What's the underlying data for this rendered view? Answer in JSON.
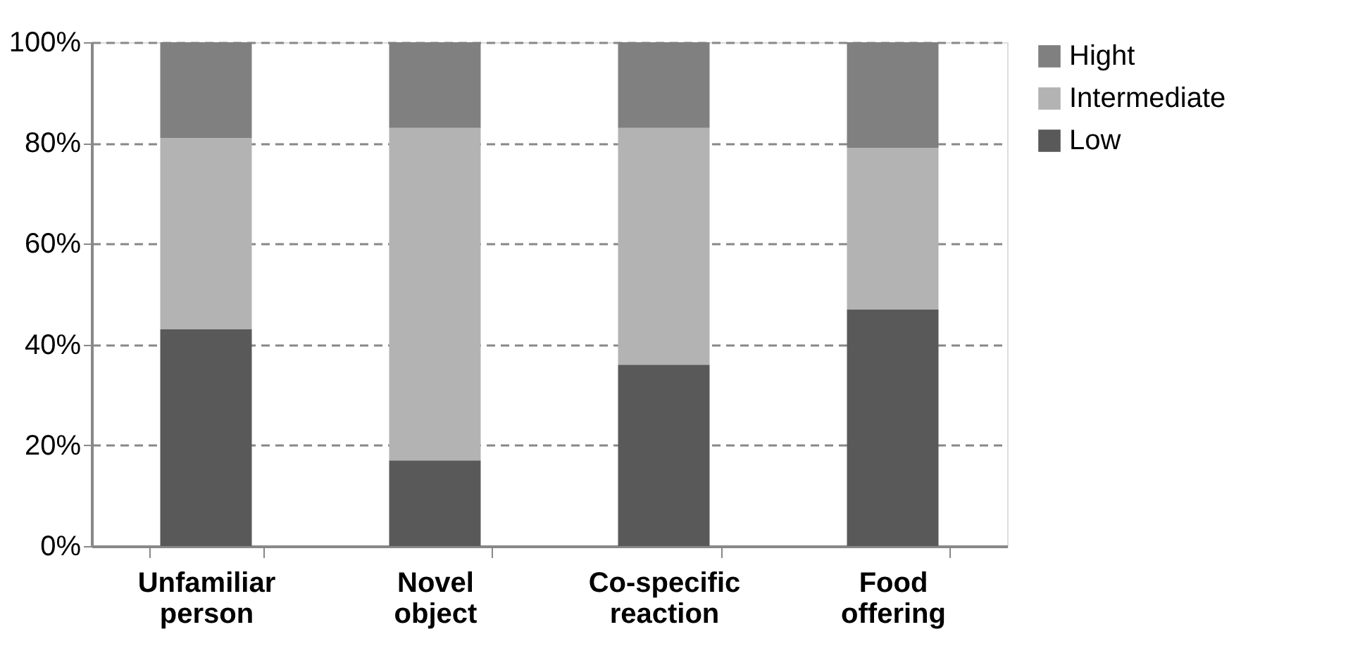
{
  "chart_data": {
    "type": "bar",
    "stacked": true,
    "categories": [
      "Unfamiliar person",
      "Novel object",
      "Co-specific reaction",
      "Food offering"
    ],
    "series": [
      {
        "name": "Low",
        "color": "#595959",
        "values": [
          43,
          17,
          36,
          47
        ]
      },
      {
        "name": "Intermediate",
        "color": "#b3b3b3",
        "values": [
          38,
          66,
          47,
          32
        ]
      },
      {
        "name": "Hight",
        "color": "#808080",
        "values": [
          19,
          17,
          17,
          21
        ]
      }
    ],
    "ylim": [
      0,
      100
    ],
    "yticks": [
      {
        "value": 0,
        "label": "0%"
      },
      {
        "value": 20,
        "label": "20%"
      },
      {
        "value": 40,
        "label": "40%"
      },
      {
        "value": 60,
        "label": "60%"
      },
      {
        "value": 80,
        "label": "80%"
      },
      {
        "value": 100,
        "label": "100%"
      }
    ],
    "grid": "y",
    "legend": "right"
  }
}
